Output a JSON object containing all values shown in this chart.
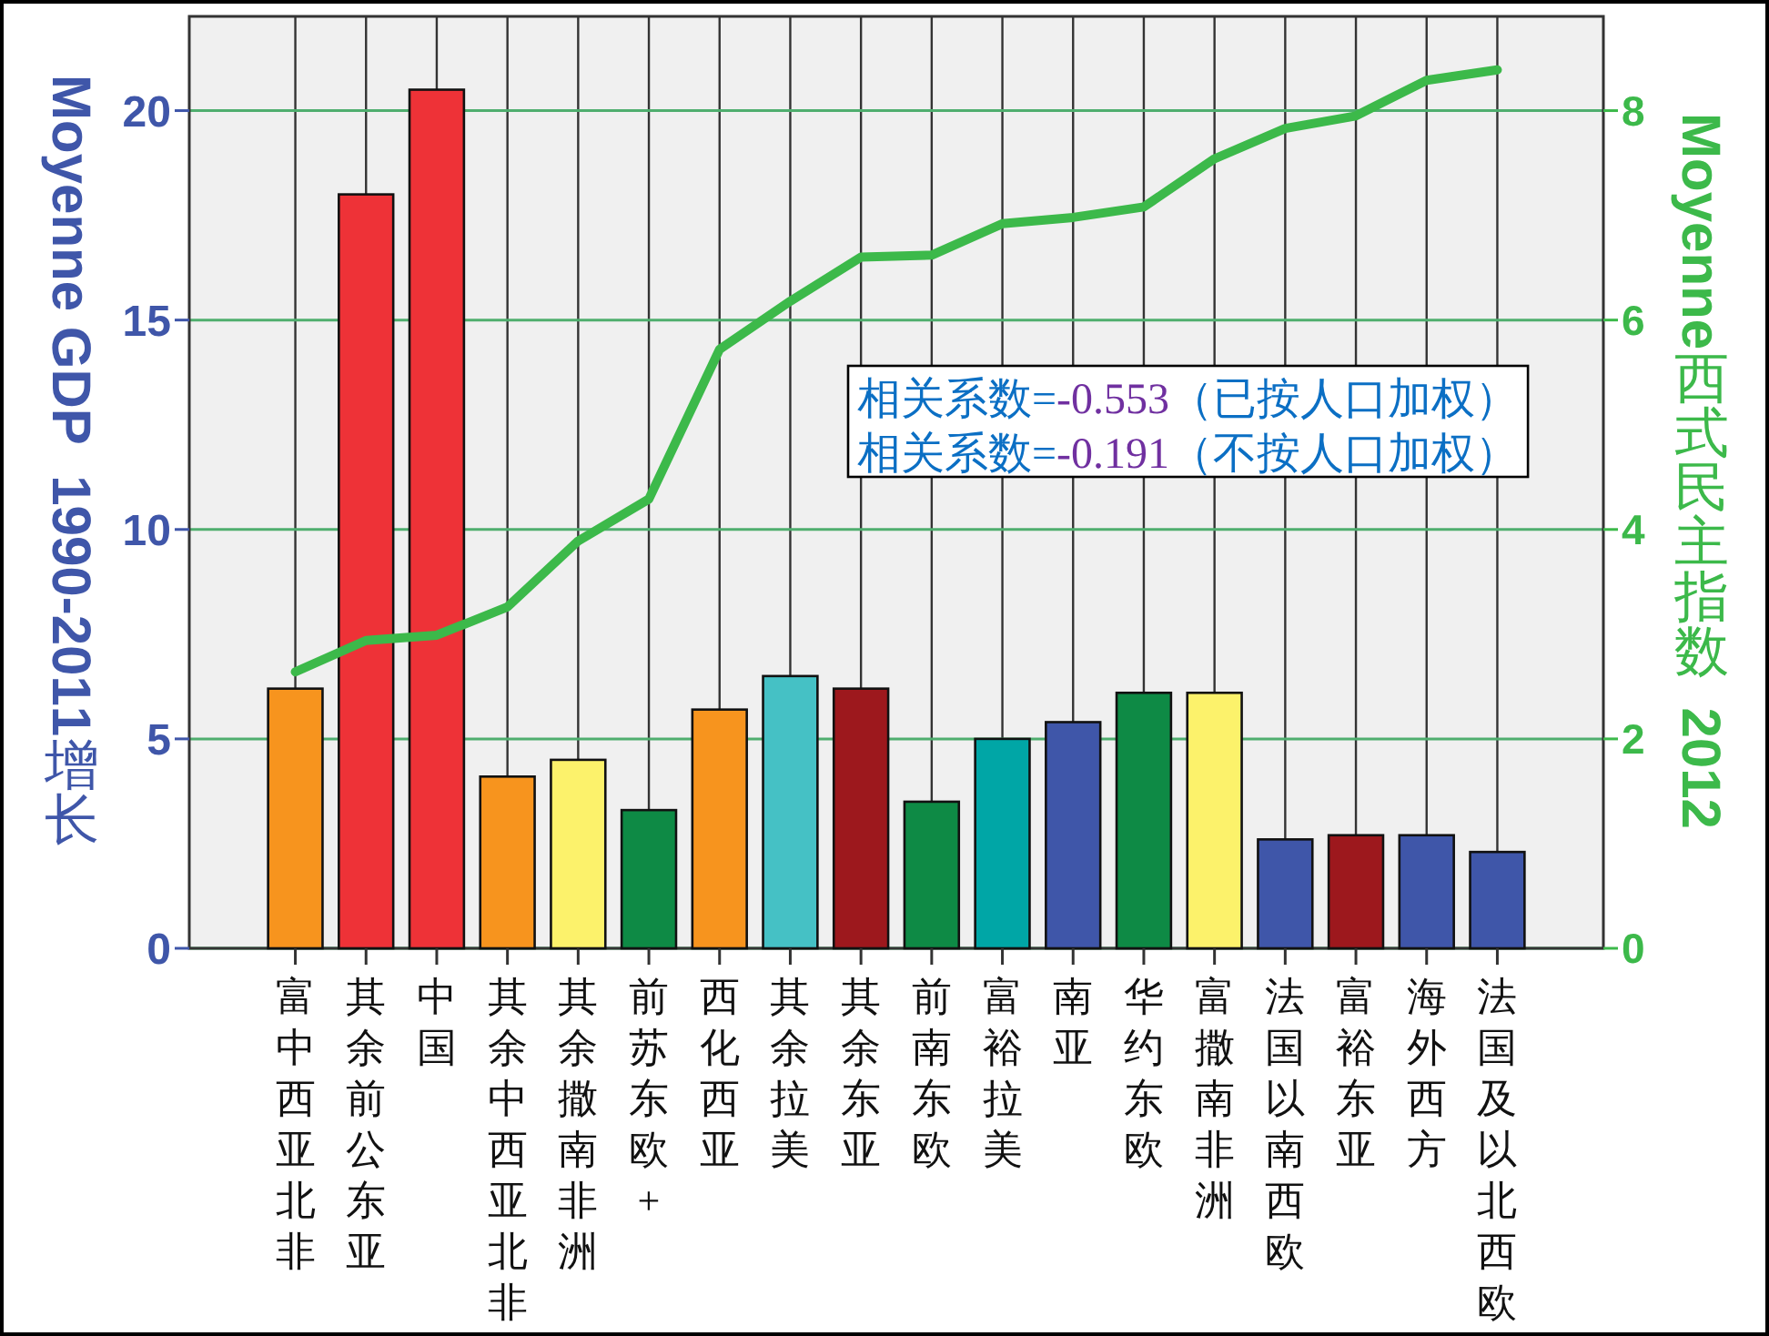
{
  "chart_data": {
    "type": "bar",
    "ylabel": "Moyenne GDP  1990-2011增长",
    "y2label": "Moyenne西式民主指数  2012",
    "categories": [
      "富中西亚北非",
      "其余前公东亚",
      "中国",
      "其余中西亚北非",
      "其余撒南非洲",
      "前苏东欧+",
      "西化西亚",
      "其余拉美",
      "其余东亚",
      "前南东欧",
      "富裕拉美",
      "南亚",
      "华约东欧",
      "富撒南非洲",
      "法国以南西欧",
      "富裕东亚",
      "海外西方",
      "法国及以北西欧"
    ],
    "series": [
      {
        "colors": [
          "#f7941e",
          "#ee3237",
          "#ee3237",
          "#f7941e",
          "#fcf26b",
          "#0e8a45",
          "#f7941e",
          "#45c1c5",
          "#9d181d",
          "#0e8a45",
          "#00a6a6",
          "#3f56a9",
          "#0e8a45",
          "#fcf26b",
          "#3f56a9",
          "#9d181d",
          "#3f56a9",
          "#3f56a9"
        ],
        "values": [
          6.2,
          18.0,
          20.5,
          4.1,
          4.5,
          3.3,
          5.7,
          6.5,
          6.2,
          3.5,
          5.0,
          5.4,
          6.1,
          6.1,
          2.6,
          2.7,
          2.7,
          2.3
        ]
      },
      {
        "type": "line",
        "axis": "y2",
        "color": "#3cb94a",
        "values": [
          2.64,
          2.94,
          2.99,
          3.26,
          3.89,
          4.29,
          5.72,
          6.18,
          6.6,
          6.62,
          6.92,
          6.98,
          7.08,
          7.54,
          7.83,
          7.95,
          8.29,
          8.39
        ]
      }
    ],
    "ylim": [
      0,
      22.25
    ],
    "yticks": [
      0,
      5,
      10,
      15,
      20
    ],
    "y2lim": [
      0,
      8.9
    ],
    "y2ticks": [
      0,
      2,
      4,
      6,
      8
    ],
    "grid": true,
    "annotations": [
      "相关系数=-0.553（已按人口加权）",
      "相关系数=-0.191（不按人口加权）"
    ]
  }
}
